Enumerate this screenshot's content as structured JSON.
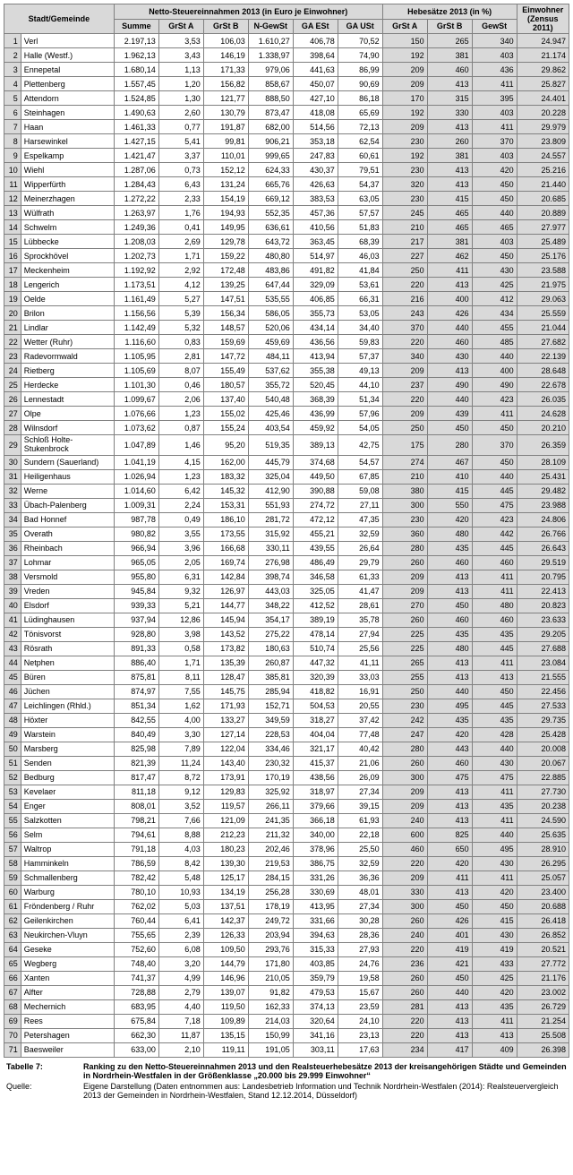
{
  "headers": {
    "stadt": "Stadt/Gemeinde",
    "netto_group": "Netto-Steuereinnahmen 2013 (in Euro je Einwohner)",
    "hebe_group": "Hebesätze 2013 (in %)",
    "einwohner": "Einwohner (Zensus 2011)",
    "cols": [
      "Summe",
      "GrSt A",
      "GrSt B",
      "N-GewSt",
      "GA ESt",
      "GA USt",
      "GrSt A",
      "GrSt B",
      "GewSt"
    ]
  },
  "caption_label": "Tabelle 7:",
  "caption_text": "Ranking zu den Netto-Steuereinnahmen 2013 und den Realsteuerhebesätze 2013 der kreisangehörigen Städte und Gemeinden in Nordrhein-Westfalen in der Größenklasse „20.000 bis 29.999 Einwohner“",
  "source_label": "Quelle:",
  "source_text": "Eigene Darstellung (Daten entnommen aus: Landesbetrieb Information und Technik Nordrhein-Westfalen (2014): Realsteuervergleich 2013 der Gemeinden in Nordrhein-Westfalen, Stand 12.12.2014, Düsseldorf)",
  "rows": [
    {
      "r": 1,
      "n": "Verl",
      "v": [
        "2.197,13",
        "3,53",
        "106,03",
        "1.610,27",
        "406,78",
        "70,52",
        "150",
        "265",
        "340",
        "24.947"
      ]
    },
    {
      "r": 2,
      "n": "Halle (Westf.)",
      "v": [
        "1.962,13",
        "3,43",
        "146,19",
        "1.338,97",
        "398,64",
        "74,90",
        "192",
        "381",
        "403",
        "21.174"
      ]
    },
    {
      "r": 3,
      "n": "Ennepetal",
      "v": [
        "1.680,14",
        "1,13",
        "171,33",
        "979,06",
        "441,63",
        "86,99",
        "209",
        "460",
        "436",
        "29.862"
      ]
    },
    {
      "r": 4,
      "n": "Plettenberg",
      "v": [
        "1.557,45",
        "1,20",
        "156,82",
        "858,67",
        "450,07",
        "90,69",
        "209",
        "413",
        "411",
        "25.827"
      ]
    },
    {
      "r": 5,
      "n": "Attendorn",
      "v": [
        "1.524,85",
        "1,30",
        "121,77",
        "888,50",
        "427,10",
        "86,18",
        "170",
        "315",
        "395",
        "24.401"
      ]
    },
    {
      "r": 6,
      "n": "Steinhagen",
      "v": [
        "1.490,63",
        "2,60",
        "130,79",
        "873,47",
        "418,08",
        "65,69",
        "192",
        "330",
        "403",
        "20.228"
      ]
    },
    {
      "r": 7,
      "n": "Haan",
      "v": [
        "1.461,33",
        "0,77",
        "191,87",
        "682,00",
        "514,56",
        "72,13",
        "209",
        "413",
        "411",
        "29.979"
      ]
    },
    {
      "r": 8,
      "n": "Harsewinkel",
      "v": [
        "1.427,15",
        "5,41",
        "99,81",
        "906,21",
        "353,18",
        "62,54",
        "230",
        "260",
        "370",
        "23.809"
      ]
    },
    {
      "r": 9,
      "n": "Espelkamp",
      "v": [
        "1.421,47",
        "3,37",
        "110,01",
        "999,65",
        "247,83",
        "60,61",
        "192",
        "381",
        "403",
        "24.557"
      ]
    },
    {
      "r": 10,
      "n": "Wiehl",
      "v": [
        "1.287,06",
        "0,73",
        "152,12",
        "624,33",
        "430,37",
        "79,51",
        "230",
        "413",
        "420",
        "25.216"
      ]
    },
    {
      "r": 11,
      "n": "Wipperfürth",
      "v": [
        "1.284,43",
        "6,43",
        "131,24",
        "665,76",
        "426,63",
        "54,37",
        "320",
        "413",
        "450",
        "21.440"
      ]
    },
    {
      "r": 12,
      "n": "Meinerzhagen",
      "v": [
        "1.272,22",
        "2,33",
        "154,19",
        "669,12",
        "383,53",
        "63,05",
        "230",
        "415",
        "450",
        "20.685"
      ]
    },
    {
      "r": 13,
      "n": "Wülfrath",
      "v": [
        "1.263,97",
        "1,76",
        "194,93",
        "552,35",
        "457,36",
        "57,57",
        "245",
        "465",
        "440",
        "20.889"
      ]
    },
    {
      "r": 14,
      "n": "Schwelm",
      "v": [
        "1.249,36",
        "0,41",
        "149,95",
        "636,61",
        "410,56",
        "51,83",
        "210",
        "465",
        "465",
        "27.977"
      ]
    },
    {
      "r": 15,
      "n": "Lübbecke",
      "v": [
        "1.208,03",
        "2,69",
        "129,78",
        "643,72",
        "363,45",
        "68,39",
        "217",
        "381",
        "403",
        "25.489"
      ]
    },
    {
      "r": 16,
      "n": "Sprockhövel",
      "v": [
        "1.202,73",
        "1,71",
        "159,22",
        "480,80",
        "514,97",
        "46,03",
        "227",
        "462",
        "450",
        "25.176"
      ]
    },
    {
      "r": 17,
      "n": "Meckenheim",
      "v": [
        "1.192,92",
        "2,92",
        "172,48",
        "483,86",
        "491,82",
        "41,84",
        "250",
        "411",
        "430",
        "23.588"
      ]
    },
    {
      "r": 18,
      "n": "Lengerich",
      "v": [
        "1.173,51",
        "4,12",
        "139,25",
        "647,44",
        "329,09",
        "53,61",
        "220",
        "413",
        "425",
        "21.975"
      ]
    },
    {
      "r": 19,
      "n": "Oelde",
      "v": [
        "1.161,49",
        "5,27",
        "147,51",
        "535,55",
        "406,85",
        "66,31",
        "216",
        "400",
        "412",
        "29.063"
      ]
    },
    {
      "r": 20,
      "n": "Brilon",
      "v": [
        "1.156,56",
        "5,39",
        "156,34",
        "586,05",
        "355,73",
        "53,05",
        "243",
        "426",
        "434",
        "25.559"
      ]
    },
    {
      "r": 21,
      "n": "Lindlar",
      "v": [
        "1.142,49",
        "5,32",
        "148,57",
        "520,06",
        "434,14",
        "34,40",
        "370",
        "440",
        "455",
        "21.044"
      ]
    },
    {
      "r": 22,
      "n": "Wetter (Ruhr)",
      "v": [
        "1.116,60",
        "0,83",
        "159,69",
        "459,69",
        "436,56",
        "59,83",
        "220",
        "460",
        "485",
        "27.682"
      ]
    },
    {
      "r": 23,
      "n": "Radevormwald",
      "v": [
        "1.105,95",
        "2,81",
        "147,72",
        "484,11",
        "413,94",
        "57,37",
        "340",
        "430",
        "440",
        "22.139"
      ]
    },
    {
      "r": 24,
      "n": "Rietberg",
      "v": [
        "1.105,69",
        "8,07",
        "155,49",
        "537,62",
        "355,38",
        "49,13",
        "209",
        "413",
        "400",
        "28.648"
      ]
    },
    {
      "r": 25,
      "n": "Herdecke",
      "v": [
        "1.101,30",
        "0,46",
        "180,57",
        "355,72",
        "520,45",
        "44,10",
        "237",
        "490",
        "490",
        "22.678"
      ]
    },
    {
      "r": 26,
      "n": "Lennestadt",
      "v": [
        "1.099,67",
        "2,06",
        "137,40",
        "540,48",
        "368,39",
        "51,34",
        "220",
        "440",
        "423",
        "26.035"
      ]
    },
    {
      "r": 27,
      "n": "Olpe",
      "v": [
        "1.076,66",
        "1,23",
        "155,02",
        "425,46",
        "436,99",
        "57,96",
        "209",
        "439",
        "411",
        "24.628"
      ]
    },
    {
      "r": 28,
      "n": "Wilnsdorf",
      "v": [
        "1.073,62",
        "0,87",
        "155,24",
        "403,54",
        "459,92",
        "54,05",
        "250",
        "450",
        "450",
        "20.210"
      ]
    },
    {
      "r": 29,
      "n": "Schloß Holte-Stukenbrock",
      "v": [
        "1.047,89",
        "1,46",
        "95,20",
        "519,35",
        "389,13",
        "42,75",
        "175",
        "280",
        "370",
        "26.359"
      ],
      "wrap": true
    },
    {
      "r": 30,
      "n": "Sundern (Sauerland)",
      "v": [
        "1.041,19",
        "4,15",
        "162,00",
        "445,79",
        "374,68",
        "54,57",
        "274",
        "467",
        "450",
        "28.109"
      ]
    },
    {
      "r": 31,
      "n": "Heiligenhaus",
      "v": [
        "1.026,94",
        "1,23",
        "183,32",
        "325,04",
        "449,50",
        "67,85",
        "210",
        "410",
        "440",
        "25.431"
      ]
    },
    {
      "r": 32,
      "n": "Werne",
      "v": [
        "1.014,60",
        "6,42",
        "145,32",
        "412,90",
        "390,88",
        "59,08",
        "380",
        "415",
        "445",
        "29.482"
      ]
    },
    {
      "r": 33,
      "n": "Übach-Palenberg",
      "v": [
        "1.009,31",
        "2,24",
        "153,31",
        "551,93",
        "274,72",
        "27,11",
        "300",
        "550",
        "475",
        "23.988"
      ]
    },
    {
      "r": 34,
      "n": "Bad Honnef",
      "v": [
        "987,78",
        "0,49",
        "186,10",
        "281,72",
        "472,12",
        "47,35",
        "230",
        "420",
        "423",
        "24.806"
      ]
    },
    {
      "r": 35,
      "n": "Overath",
      "v": [
        "980,82",
        "3,55",
        "173,55",
        "315,92",
        "455,21",
        "32,59",
        "360",
        "480",
        "442",
        "26.766"
      ]
    },
    {
      "r": 36,
      "n": "Rheinbach",
      "v": [
        "966,94",
        "3,96",
        "166,68",
        "330,11",
        "439,55",
        "26,64",
        "280",
        "435",
        "445",
        "26.643"
      ]
    },
    {
      "r": 37,
      "n": "Lohmar",
      "v": [
        "965,05",
        "2,05",
        "169,74",
        "276,98",
        "486,49",
        "29,79",
        "260",
        "460",
        "460",
        "29.519"
      ]
    },
    {
      "r": 38,
      "n": "Versmold",
      "v": [
        "955,80",
        "6,31",
        "142,84",
        "398,74",
        "346,58",
        "61,33",
        "209",
        "413",
        "411",
        "20.795"
      ]
    },
    {
      "r": 39,
      "n": "Vreden",
      "v": [
        "945,84",
        "9,32",
        "126,97",
        "443,03",
        "325,05",
        "41,47",
        "209",
        "413",
        "411",
        "22.413"
      ]
    },
    {
      "r": 40,
      "n": "Elsdorf",
      "v": [
        "939,33",
        "5,21",
        "144,77",
        "348,22",
        "412,52",
        "28,61",
        "270",
        "450",
        "480",
        "20.823"
      ]
    },
    {
      "r": 41,
      "n": "Lüdinghausen",
      "v": [
        "937,94",
        "12,86",
        "145,94",
        "354,17",
        "389,19",
        "35,78",
        "260",
        "460",
        "460",
        "23.633"
      ]
    },
    {
      "r": 42,
      "n": "Tönisvorst",
      "v": [
        "928,80",
        "3,98",
        "143,52",
        "275,22",
        "478,14",
        "27,94",
        "225",
        "435",
        "435",
        "29.205"
      ]
    },
    {
      "r": 43,
      "n": "Rösrath",
      "v": [
        "891,33",
        "0,58",
        "173,82",
        "180,63",
        "510,74",
        "25,56",
        "225",
        "480",
        "445",
        "27.688"
      ]
    },
    {
      "r": 44,
      "n": "Netphen",
      "v": [
        "886,40",
        "1,71",
        "135,39",
        "260,87",
        "447,32",
        "41,11",
        "265",
        "413",
        "411",
        "23.084"
      ]
    },
    {
      "r": 45,
      "n": "Büren",
      "v": [
        "875,81",
        "8,11",
        "128,47",
        "385,81",
        "320,39",
        "33,03",
        "255",
        "413",
        "413",
        "21.555"
      ]
    },
    {
      "r": 46,
      "n": "Jüchen",
      "v": [
        "874,97",
        "7,55",
        "145,75",
        "285,94",
        "418,82",
        "16,91",
        "250",
        "440",
        "450",
        "22.456"
      ]
    },
    {
      "r": 47,
      "n": "Leichlingen (Rhld.)",
      "v": [
        "851,34",
        "1,62",
        "171,93",
        "152,71",
        "504,53",
        "20,55",
        "230",
        "495",
        "445",
        "27.533"
      ]
    },
    {
      "r": 48,
      "n": "Höxter",
      "v": [
        "842,55",
        "4,00",
        "133,27",
        "349,59",
        "318,27",
        "37,42",
        "242",
        "435",
        "435",
        "29.735"
      ]
    },
    {
      "r": 49,
      "n": "Warstein",
      "v": [
        "840,49",
        "3,30",
        "127,14",
        "228,53",
        "404,04",
        "77,48",
        "247",
        "420",
        "428",
        "25.428"
      ]
    },
    {
      "r": 50,
      "n": "Marsberg",
      "v": [
        "825,98",
        "7,89",
        "122,04",
        "334,46",
        "321,17",
        "40,42",
        "280",
        "443",
        "440",
        "20.008"
      ]
    },
    {
      "r": 51,
      "n": "Senden",
      "v": [
        "821,39",
        "11,24",
        "143,40",
        "230,32",
        "415,37",
        "21,06",
        "260",
        "460",
        "430",
        "20.067"
      ]
    },
    {
      "r": 52,
      "n": "Bedburg",
      "v": [
        "817,47",
        "8,72",
        "173,91",
        "170,19",
        "438,56",
        "26,09",
        "300",
        "475",
        "475",
        "22.885"
      ]
    },
    {
      "r": 53,
      "n": "Kevelaer",
      "v": [
        "811,18",
        "9,12",
        "129,83",
        "325,92",
        "318,97",
        "27,34",
        "209",
        "413",
        "411",
        "27.730"
      ]
    },
    {
      "r": 54,
      "n": "Enger",
      "v": [
        "808,01",
        "3,52",
        "119,57",
        "266,11",
        "379,66",
        "39,15",
        "209",
        "413",
        "435",
        "20.238"
      ]
    },
    {
      "r": 55,
      "n": "Salzkotten",
      "v": [
        "798,21",
        "7,66",
        "121,09",
        "241,35",
        "366,18",
        "61,93",
        "240",
        "413",
        "411",
        "24.590"
      ]
    },
    {
      "r": 56,
      "n": "Selm",
      "v": [
        "794,61",
        "8,88",
        "212,23",
        "211,32",
        "340,00",
        "22,18",
        "600",
        "825",
        "440",
        "25.635"
      ]
    },
    {
      "r": 57,
      "n": "Waltrop",
      "v": [
        "791,18",
        "4,03",
        "180,23",
        "202,46",
        "378,96",
        "25,50",
        "460",
        "650",
        "495",
        "28.910"
      ]
    },
    {
      "r": 58,
      "n": "Hamminkeln",
      "v": [
        "786,59",
        "8,42",
        "139,30",
        "219,53",
        "386,75",
        "32,59",
        "220",
        "420",
        "430",
        "26.295"
      ]
    },
    {
      "r": 59,
      "n": "Schmallenberg",
      "v": [
        "782,42",
        "5,48",
        "125,17",
        "284,15",
        "331,26",
        "36,36",
        "209",
        "411",
        "411",
        "25.057"
      ]
    },
    {
      "r": 60,
      "n": "Warburg",
      "v": [
        "780,10",
        "10,93",
        "134,19",
        "256,28",
        "330,69",
        "48,01",
        "330",
        "413",
        "420",
        "23.400"
      ]
    },
    {
      "r": 61,
      "n": "Fröndenberg / Ruhr",
      "v": [
        "762,02",
        "5,03",
        "137,51",
        "178,19",
        "413,95",
        "27,34",
        "300",
        "450",
        "450",
        "20.688"
      ]
    },
    {
      "r": 62,
      "n": "Geilenkirchen",
      "v": [
        "760,44",
        "6,41",
        "142,37",
        "249,72",
        "331,66",
        "30,28",
        "260",
        "426",
        "415",
        "26.418"
      ]
    },
    {
      "r": 63,
      "n": "Neukirchen-Vluyn",
      "v": [
        "755,65",
        "2,39",
        "126,33",
        "203,94",
        "394,63",
        "28,36",
        "240",
        "401",
        "430",
        "26.852"
      ]
    },
    {
      "r": 64,
      "n": "Geseke",
      "v": [
        "752,60",
        "6,08",
        "109,50",
        "293,76",
        "315,33",
        "27,93",
        "220",
        "419",
        "419",
        "20.521"
      ]
    },
    {
      "r": 65,
      "n": "Wegberg",
      "v": [
        "748,40",
        "3,20",
        "144,79",
        "171,80",
        "403,85",
        "24,76",
        "236",
        "421",
        "433",
        "27.772"
      ]
    },
    {
      "r": 66,
      "n": "Xanten",
      "v": [
        "741,37",
        "4,99",
        "146,96",
        "210,05",
        "359,79",
        "19,58",
        "260",
        "450",
        "425",
        "21.176"
      ]
    },
    {
      "r": 67,
      "n": "Alfter",
      "v": [
        "728,88",
        "2,79",
        "139,07",
        "91,82",
        "479,53",
        "15,67",
        "260",
        "440",
        "420",
        "23.002"
      ]
    },
    {
      "r": 68,
      "n": "Mechernich",
      "v": [
        "683,95",
        "4,40",
        "119,50",
        "162,33",
        "374,13",
        "23,59",
        "281",
        "413",
        "435",
        "26.729"
      ]
    },
    {
      "r": 69,
      "n": "Rees",
      "v": [
        "675,84",
        "7,18",
        "109,89",
        "214,03",
        "320,64",
        "24,10",
        "220",
        "413",
        "411",
        "21.254"
      ]
    },
    {
      "r": 70,
      "n": "Petershagen",
      "v": [
        "662,30",
        "11,87",
        "135,15",
        "150,99",
        "341,16",
        "23,13",
        "220",
        "413",
        "413",
        "25.508"
      ]
    },
    {
      "r": 71,
      "n": "Baesweiler",
      "v": [
        "633,00",
        "2,10",
        "119,11",
        "191,05",
        "303,11",
        "17,63",
        "234",
        "417",
        "409",
        "26.398"
      ]
    }
  ],
  "styling": {
    "font_family": "Arial",
    "font_size_pt": 7,
    "header_bg": "#d9d9d9",
    "border_color": "#808080",
    "text_color": "#000000",
    "shaded_cols": [
      0,
      7,
      8,
      9,
      10
    ]
  }
}
